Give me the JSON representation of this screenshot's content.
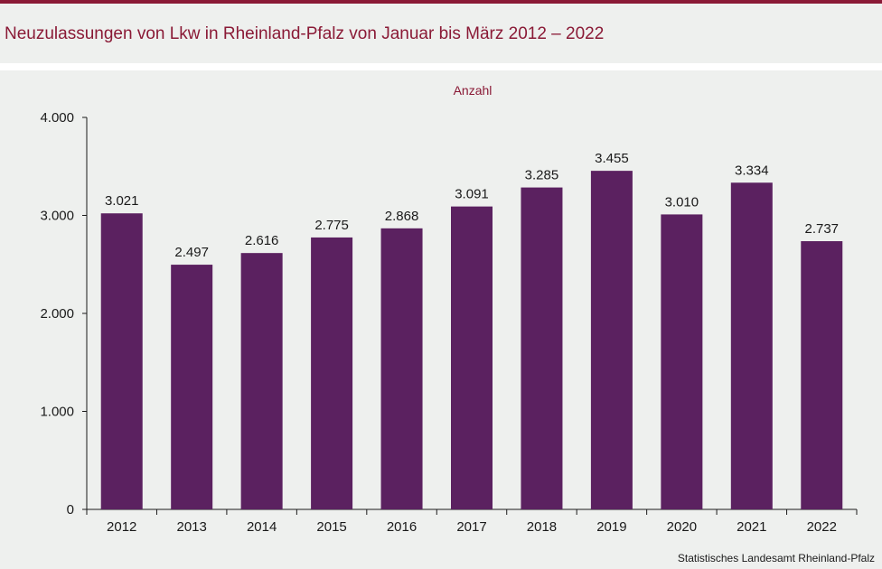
{
  "page": {
    "title": "Neuzulassungen von Lkw in Rheinland-Pfalz von Januar bis März 2012 – 2022",
    "source": "Statistisches Landesamt  Rheinland-Pfalz"
  },
  "colors": {
    "accent": "#8a1a36",
    "bar": "#5b2160",
    "background": "#eef0ee"
  },
  "chart_data": {
    "type": "bar",
    "unit_label": "Anzahl",
    "categories": [
      "2012",
      "2013",
      "2014",
      "2015",
      "2016",
      "2017",
      "2018",
      "2019",
      "2020",
      "2021",
      "2022"
    ],
    "values": [
      3021,
      2497,
      2616,
      2775,
      2868,
      3091,
      3285,
      3455,
      3010,
      3334,
      2737
    ],
    "value_labels": [
      "3.021",
      "2.497",
      "2.616",
      "2.775",
      "2.868",
      "3.091",
      "3.285",
      "3.455",
      "3.010",
      "3.334",
      "2.737"
    ],
    "y_ticks": [
      0,
      1000,
      2000,
      3000,
      4000
    ],
    "y_tick_labels": [
      "0",
      "1.000",
      "2.000",
      "3.000",
      "4.000"
    ],
    "ylim": [
      0,
      4000
    ],
    "grid": false,
    "legend": "none"
  }
}
